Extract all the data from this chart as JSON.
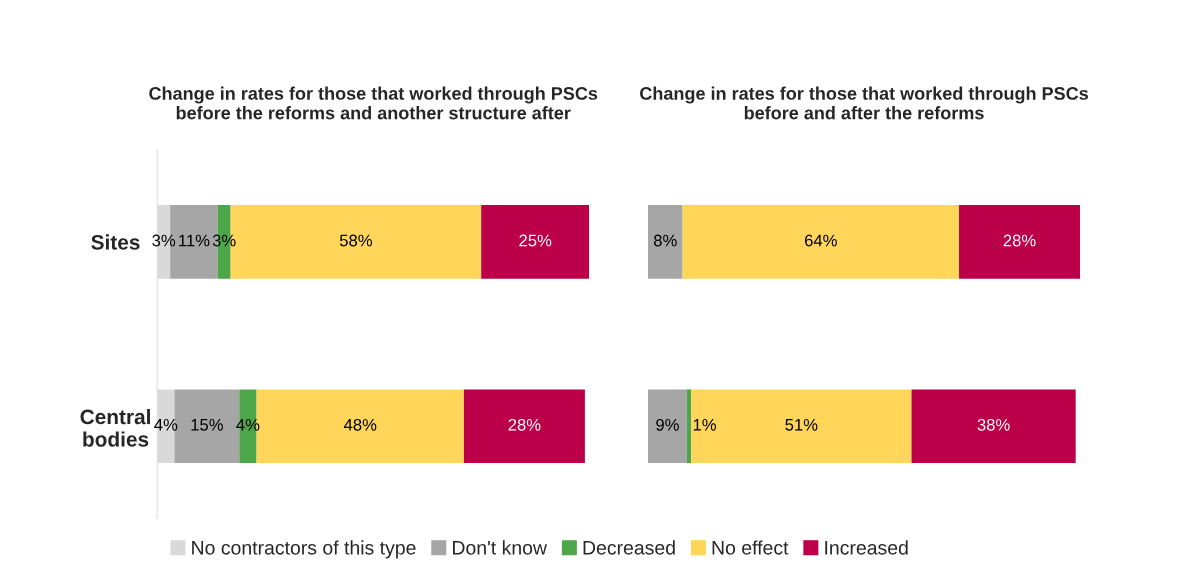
{
  "chart_data": [
    {
      "type": "bar",
      "orientation": "horizontal",
      "stacked": true,
      "title": "Change in rates for those that worked through PSCs before the reforms and another structure after",
      "categories": [
        "Sites",
        "Central bodies"
      ],
      "xlim": [
        0,
        100
      ],
      "tick_labels": "y",
      "legend": "bottom",
      "grid": false,
      "series": [
        {
          "name": "No contractors of this type",
          "color": "#d9d9d9",
          "values": [
            3,
            4
          ],
          "value_labels": [
            "3%",
            "4%"
          ]
        },
        {
          "name": "Don't know",
          "color": "#a6a6a6",
          "values": [
            11,
            15
          ],
          "value_labels": [
            "11%",
            "15%"
          ]
        },
        {
          "name": "Decreased",
          "color": "#4ea64a",
          "values": [
            3,
            4
          ],
          "value_labels": [
            "3%",
            "4%"
          ]
        },
        {
          "name": "No effect",
          "color": "#ffd55a",
          "values": [
            58,
            48
          ],
          "value_labels": [
            "58%",
            "48%"
          ]
        },
        {
          "name": "Increased",
          "color": "#bb0049",
          "values": [
            25,
            28
          ],
          "value_labels": [
            "25%",
            "28%"
          ]
        }
      ]
    },
    {
      "type": "bar",
      "orientation": "horizontal",
      "stacked": true,
      "title": "Change in rates for those that worked through PSCs before and after the reforms",
      "categories": [
        null,
        null
      ],
      "xlim": [
        0,
        100
      ],
      "tick_labels": false,
      "grid": false,
      "series": [
        {
          "color": "#a6a6a6",
          "values": [
            8,
            9
          ],
          "value_labels": [
            "8%",
            "9%"
          ]
        },
        {
          "color": "#4ea64a",
          "values": [
            null,
            1
          ],
          "value_labels": [
            null,
            "1%"
          ]
        },
        {
          "color": "#ffd55a",
          "values": [
            64,
            51
          ],
          "value_labels": [
            "64%",
            "51%"
          ]
        },
        {
          "color": "#bb0049",
          "values": [
            28,
            38
          ],
          "value_labels": [
            "28%",
            "38%"
          ]
        }
      ]
    }
  ]
}
